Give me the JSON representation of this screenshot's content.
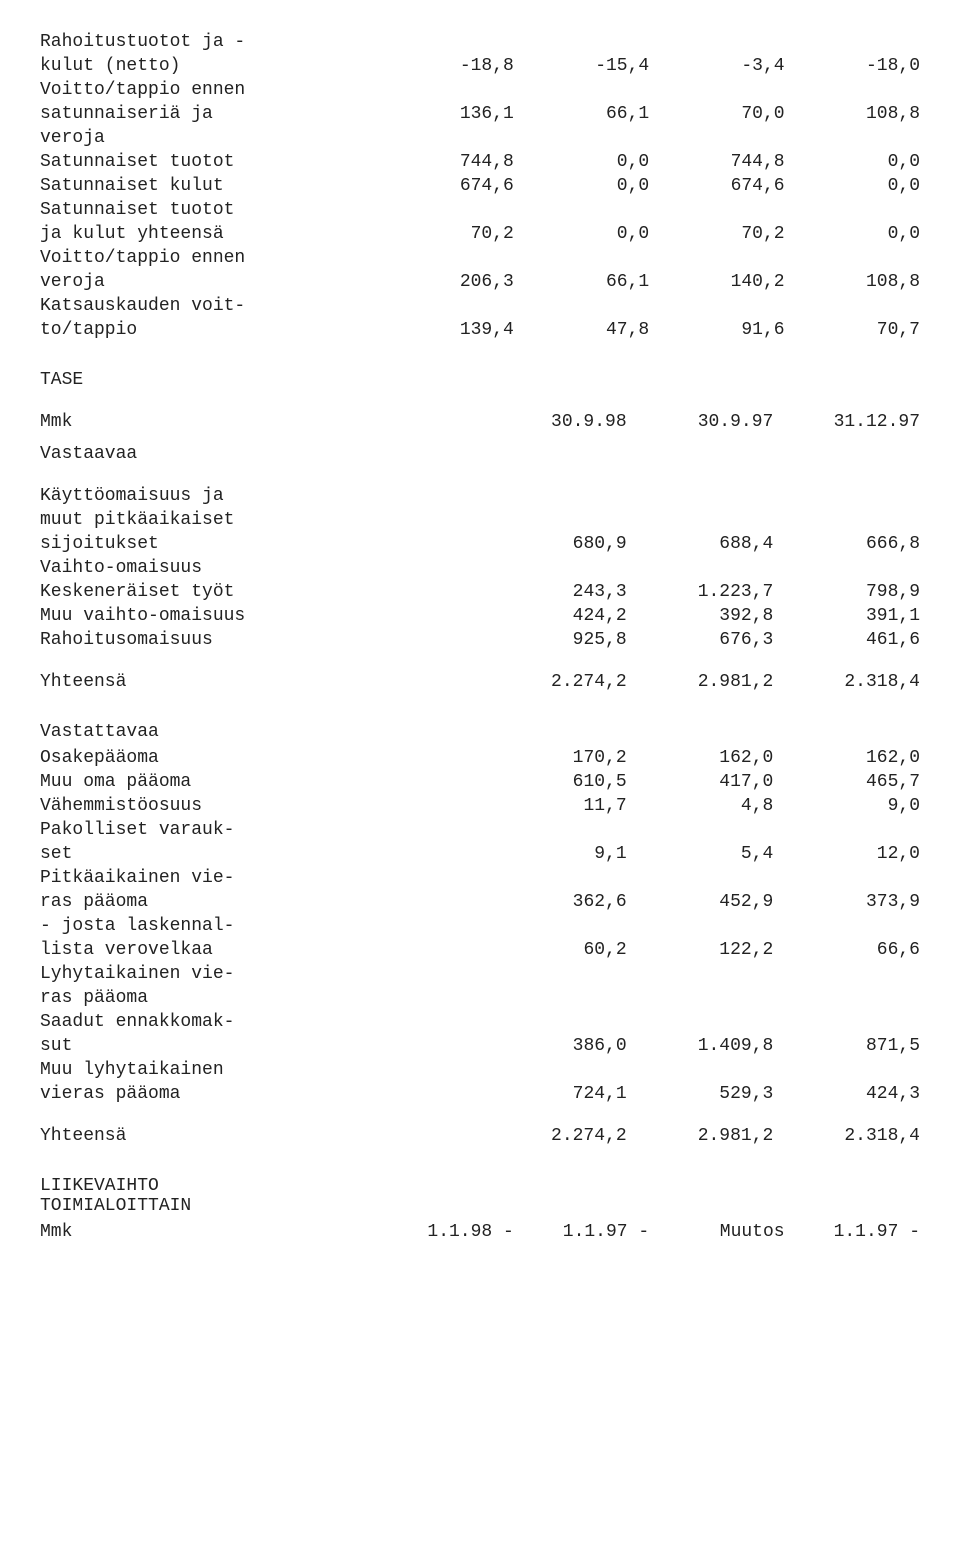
{
  "income": {
    "rows": [
      {
        "l1": "Rahoitustuotot ja -",
        "l2": "kulut (netto)",
        "c1": "-18,8",
        "c2": "-15,4",
        "c3": "-3,4",
        "c4": "-18,0"
      },
      {
        "l1": "Voitto/tappio ennen",
        "l2": "satunnaiseriä ja",
        "l3": "veroja",
        "c1": "136,1",
        "c2": "66,1",
        "c3": "70,0",
        "c4": "108,8"
      },
      {
        "l1": "Satunnaiset tuotot",
        "c1": "744,8",
        "c2": "0,0",
        "c3": "744,8",
        "c4": "0,0"
      },
      {
        "l1": "Satunnaiset kulut",
        "c1": "674,6",
        "c2": "0,0",
        "c3": "674,6",
        "c4": "0,0"
      },
      {
        "l1": "Satunnaiset tuotot",
        "l2": "ja kulut yhteensä",
        "c1": "70,2",
        "c2": "0,0",
        "c3": "70,2",
        "c4": "0,0"
      },
      {
        "l1": "Voitto/tappio ennen",
        "l2": "veroja",
        "c1": "206,3",
        "c2": "66,1",
        "c3": "140,2",
        "c4": "108,8"
      },
      {
        "l1": "Katsauskauden voit-",
        "l2": "to/tappio",
        "c1": "139,4",
        "c2": "47,8",
        "c3": "91,6",
        "c4": "70,7"
      }
    ]
  },
  "balance": {
    "title": "TASE",
    "header": {
      "l": "Mmk",
      "c1": "30.9.98",
      "c2": "30.9.97",
      "c3": "31.12.97"
    },
    "assets_title": "Vastaavaa",
    "assets": [
      {
        "l1": "Käyttöomaisuus ja",
        "l2": "muut pitkäaikaiset",
        "l3": "sijoitukset",
        "c1": "680,9",
        "c2": "688,4",
        "c3": "666,8"
      },
      {
        "l1": "Vaihto-omaisuus"
      },
      {
        "l1": "Keskeneräiset työt",
        "c1": "243,3",
        "c2": "1.223,7",
        "c3": "798,9"
      },
      {
        "l1": "Muu vaihto-omaisuus",
        "c1": "424,2",
        "c2": "392,8",
        "c3": "391,1"
      },
      {
        "l1": "Rahoitusomaisuus",
        "c1": "925,8",
        "c2": "676,3",
        "c3": "461,6"
      }
    ],
    "assets_total": {
      "l": "Yhteensä",
      "c1": "2.274,2",
      "c2": "2.981,2",
      "c3": "2.318,4"
    },
    "liab_title": "Vastattavaa",
    "liab": [
      {
        "l1": "Osakepääoma",
        "c1": "170,2",
        "c2": "162,0",
        "c3": "162,0"
      },
      {
        "l1": "Muu oma pääoma",
        "c1": "610,5",
        "c2": "417,0",
        "c3": "465,7"
      },
      {
        "l1": "Vähemmistöosuus",
        "c1": "11,7",
        "c2": "4,8",
        "c3": "9,0"
      },
      {
        "l1": "Pakolliset varauk-",
        "l2": "set",
        "c1": "9,1",
        "c2": "5,4",
        "c3": "12,0"
      },
      {
        "l1": "Pitkäaikainen vie-",
        "l2": "ras pääoma",
        "c1": "362,6",
        "c2": "452,9",
        "c3": "373,9"
      },
      {
        "l1": "- josta laskennal-",
        "l2": "lista verovelkaa",
        "c1": "60,2",
        "c2": "122,2",
        "c3": "66,6"
      },
      {
        "l1": "Lyhytaikainen vie-",
        "l2": "ras pääoma"
      },
      {
        "l1": "Saadut ennakkomak-",
        "l2": "sut",
        "c1": "386,0",
        "c2": "1.409,8",
        "c3": "871,5"
      },
      {
        "l1": "Muu lyhytaikainen",
        "l2": "vieras pääoma",
        "c1": "724,1",
        "c2": "529,3",
        "c3": "424,3"
      }
    ],
    "liab_total": {
      "l": "Yhteensä",
      "c1": "2.274,2",
      "c2": "2.981,2",
      "c3": "2.318,4"
    }
  },
  "revenue": {
    "title_l1": "LIIKEVAIHTO",
    "title_l2": "TOIMIALOITTAIN",
    "header": {
      "l": "Mmk",
      "c1": "1.1.98 -",
      "c2": "1.1.97 -",
      "c3": "Muutos",
      "c4": "1.1.97 -"
    }
  }
}
